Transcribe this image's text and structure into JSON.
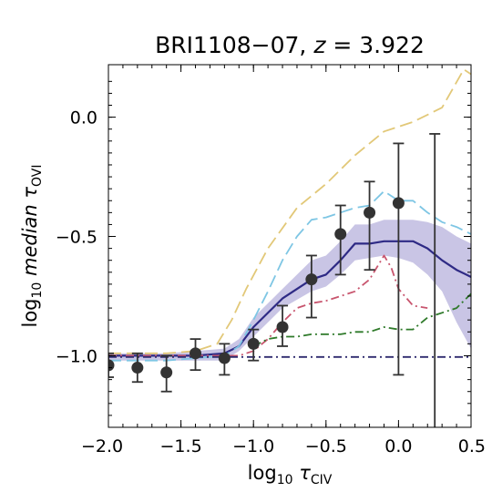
{
  "chart_data": {
    "type": "line",
    "title": {
      "name": "BRI1108−07, ",
      "z": "z",
      "value": " = 3.922"
    },
    "xlabel": {
      "base": "log",
      "sub": "10",
      "symbol": " τ",
      "symsub": "CIV"
    },
    "ylabel": {
      "base": "log",
      "sub": "10",
      "rest": " median τ",
      "symsub": "OVI"
    },
    "xlim": [
      -2.0,
      0.5
    ],
    "ylim": [
      -1.3,
      0.22
    ],
    "xticks": [
      -2.0,
      -1.5,
      -1.0,
      -0.5,
      0.0,
      0.5
    ],
    "xtick_labels": [
      "−2.0",
      "−1.5",
      "−1.0",
      "−0.5",
      "0.0",
      "0.5"
    ],
    "yticks": [
      -1.0,
      -0.5,
      0.0
    ],
    "ytick_labels": [
      "−1.0",
      "−0.5",
      "0.0"
    ],
    "grid": false,
    "band": {
      "color": "#9c96d0",
      "x": [
        -2.0,
        -1.8,
        -1.6,
        -1.4,
        -1.2,
        -1.1,
        -1.0,
        -0.8,
        -0.6,
        -0.5,
        -0.4,
        -0.3,
        -0.2,
        -0.1,
        0.0,
        0.1,
        0.2,
        0.3,
        0.4,
        0.5
      ],
      "lower": [
        -1.02,
        -1.02,
        -1.02,
        -1.02,
        -1.02,
        -0.98,
        -0.92,
        -0.8,
        -0.73,
        -0.71,
        -0.66,
        -0.6,
        -0.59,
        -0.58,
        -0.59,
        -0.61,
        -0.66,
        -0.73,
        -0.86,
        -0.97
      ],
      "upper": [
        -0.99,
        -0.99,
        -0.99,
        -0.98,
        -0.97,
        -0.93,
        -0.84,
        -0.72,
        -0.6,
        -0.58,
        -0.52,
        -0.45,
        -0.45,
        -0.43,
        -0.43,
        -0.43,
        -0.44,
        -0.46,
        -0.5,
        -0.53
      ]
    },
    "series": [
      {
        "style": "solid",
        "color": "#2e2a85",
        "width": 2.2,
        "x": [
          -2.0,
          -1.8,
          -1.6,
          -1.4,
          -1.2,
          -1.1,
          -1.0,
          -0.8,
          -0.6,
          -0.5,
          -0.4,
          -0.3,
          -0.2,
          -0.1,
          0.0,
          0.1,
          0.2,
          0.3,
          0.4,
          0.5
        ],
        "y": [
          -1.0,
          -1.0,
          -1.0,
          -1.0,
          -0.99,
          -0.96,
          -0.88,
          -0.76,
          -0.68,
          -0.66,
          -0.6,
          -0.53,
          -0.53,
          -0.52,
          -0.52,
          -0.52,
          -0.55,
          -0.6,
          -0.64,
          -0.67
        ]
      },
      {
        "style": "dashed",
        "color": "#e2c878",
        "width": 1.8,
        "x": [
          -2.0,
          -1.8,
          -1.6,
          -1.4,
          -1.25,
          -1.15,
          -1.05,
          -0.9,
          -0.7,
          -0.5,
          -0.3,
          -0.1,
          0.1,
          0.3,
          0.45,
          0.5
        ],
        "y": [
          -0.99,
          -0.99,
          -0.99,
          -0.98,
          -0.95,
          -0.85,
          -0.72,
          -0.55,
          -0.38,
          -0.28,
          -0.16,
          -0.06,
          -0.02,
          0.04,
          0.2,
          0.18
        ]
      },
      {
        "style": "dashed",
        "color": "#7ec6e4",
        "width": 1.8,
        "x": [
          -2.0,
          -1.8,
          -1.6,
          -1.4,
          -1.2,
          -1.1,
          -1.0,
          -0.9,
          -0.8,
          -0.7,
          -0.6,
          -0.5,
          -0.4,
          -0.3,
          -0.2,
          -0.1,
          0.0,
          0.1,
          0.2,
          0.3,
          0.4,
          0.5
        ],
        "y": [
          -1.02,
          -1.02,
          -1.02,
          -1.01,
          -1.0,
          -0.96,
          -0.85,
          -0.73,
          -0.6,
          -0.5,
          -0.43,
          -0.42,
          -0.4,
          -0.38,
          -0.37,
          -0.31,
          -0.35,
          -0.35,
          -0.4,
          -0.44,
          -0.46,
          -0.49
        ]
      },
      {
        "style": "dashdot",
        "color": "#c8556e",
        "width": 1.8,
        "x": [
          -2.0,
          -1.8,
          -1.6,
          -1.4,
          -1.2,
          -1.1,
          -1.0,
          -0.9,
          -0.8,
          -0.7,
          -0.6,
          -0.5,
          -0.4,
          -0.3,
          -0.2,
          -0.1,
          -0.05,
          0.0,
          0.1,
          0.2
        ],
        "y": [
          -1.0,
          -1.0,
          -1.0,
          -1.0,
          -1.0,
          -1.0,
          -0.98,
          -0.93,
          -0.86,
          -0.8,
          -0.78,
          -0.77,
          -0.75,
          -0.73,
          -0.68,
          -0.58,
          -0.63,
          -0.72,
          -0.79,
          -0.8
        ]
      },
      {
        "style": "dashdot",
        "color": "#2f7a2a",
        "width": 1.8,
        "x": [
          -1.0,
          -0.9,
          -0.8,
          -0.7,
          -0.6,
          -0.5,
          -0.4,
          -0.3,
          -0.2,
          -0.1,
          0.0,
          0.1,
          0.2,
          0.3,
          0.4,
          0.5
        ],
        "y": [
          -0.96,
          -0.93,
          -0.92,
          -0.92,
          -0.91,
          -0.91,
          -0.91,
          -0.9,
          -0.9,
          -0.88,
          -0.89,
          -0.89,
          -0.84,
          -0.82,
          -0.8,
          -0.74
        ]
      },
      {
        "style": "dashdot",
        "color": "#2e2a6e",
        "width": 1.8,
        "x": [
          -2.0,
          0.5
        ],
        "y": [
          -1.005,
          -1.005
        ]
      }
    ],
    "points": {
      "color": "#333333",
      "x": [
        -2.0,
        -1.8,
        -1.6,
        -1.4,
        -1.2,
        -1.0,
        -0.8,
        -0.6,
        -0.4,
        -0.2,
        0.0,
        0.25
      ],
      "y": [
        -1.04,
        -1.05,
        -1.07,
        -0.99,
        -1.01,
        -0.95,
        -0.88,
        -0.68,
        -0.49,
        -0.4,
        -0.36,
        null
      ],
      "err_low": [
        0.05,
        0.06,
        0.08,
        0.07,
        0.07,
        0.07,
        0.08,
        0.16,
        0.17,
        0.24,
        0.72,
        null
      ],
      "err_high": [
        0.05,
        0.06,
        0.07,
        0.06,
        0.06,
        0.06,
        0.09,
        0.1,
        0.12,
        0.13,
        0.25,
        null
      ],
      "bar_min": [
        null,
        null,
        null,
        null,
        null,
        null,
        null,
        null,
        null,
        null,
        null,
        -1.3
      ],
      "bar_max": [
        null,
        null,
        null,
        null,
        null,
        null,
        null,
        null,
        null,
        null,
        null,
        -0.07
      ]
    }
  }
}
